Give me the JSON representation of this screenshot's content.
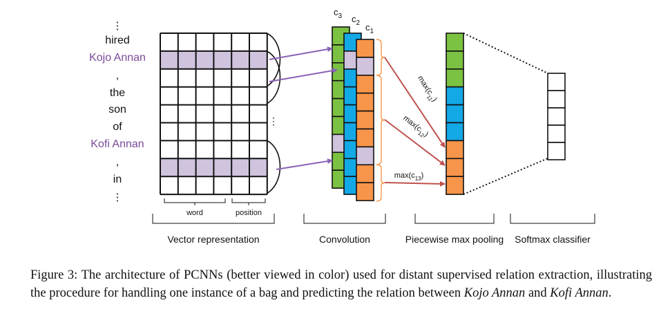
{
  "words": [
    {
      "text": "⋮",
      "highlight": false
    },
    {
      "text": "hired",
      "highlight": false
    },
    {
      "text": "Kojo Annan",
      "highlight": true
    },
    {
      "text": ",",
      "highlight": false
    },
    {
      "text": "the",
      "highlight": false
    },
    {
      "text": "son",
      "highlight": false
    },
    {
      "text": "of",
      "highlight": false
    },
    {
      "text": "Kofi Annan",
      "highlight": true
    },
    {
      "text": ",",
      "highlight": false
    },
    {
      "text": "in",
      "highlight": false
    },
    {
      "text": "⋮",
      "highlight": false
    }
  ],
  "colors": {
    "entity_text": "#7a4a9a",
    "entity_fill": "#cfc3de",
    "green": "#7cc242",
    "blue": "#13a8e6",
    "orange": "#f7954a",
    "purple_arrow": "#8a63b5",
    "red_arrow": "#c0504d"
  },
  "vector": {
    "word_label": "word",
    "position_label": "position",
    "section_label": "Vector representation"
  },
  "convolution": {
    "filters": [
      "c3",
      "c2",
      "c1"
    ],
    "filter_labels": [
      {
        "base": "c",
        "sub": "3"
      },
      {
        "base": "c",
        "sub": "2"
      },
      {
        "base": "c",
        "sub": "1"
      }
    ],
    "section_label": "Convolution"
  },
  "pooling": {
    "max_labels": [
      {
        "base": "max(c",
        "sub": "11",
        "end": ")"
      },
      {
        "base": "max(c",
        "sub": "12",
        "end": ")"
      },
      {
        "base": "max(c",
        "sub": "13",
        "end": ")"
      }
    ],
    "cell_colors": [
      "green",
      "green",
      "green",
      "blue",
      "blue",
      "blue",
      "orange",
      "orange",
      "orange"
    ],
    "section_label": "Piecewise max pooling"
  },
  "softmax": {
    "section_label": "Softmax classifier"
  },
  "ellipsis": "⋮",
  "caption": {
    "lead": "Figure 3: The architecture of PCNNs (better viewed in color) used for distant supervised relation extraction, illustrating the procedure for handling one instance of a bag and predicting the relation between",
    "entity1": "Kojo Annan",
    "conj": "and",
    "entity2": "Kofi Annan",
    "end": "."
  }
}
